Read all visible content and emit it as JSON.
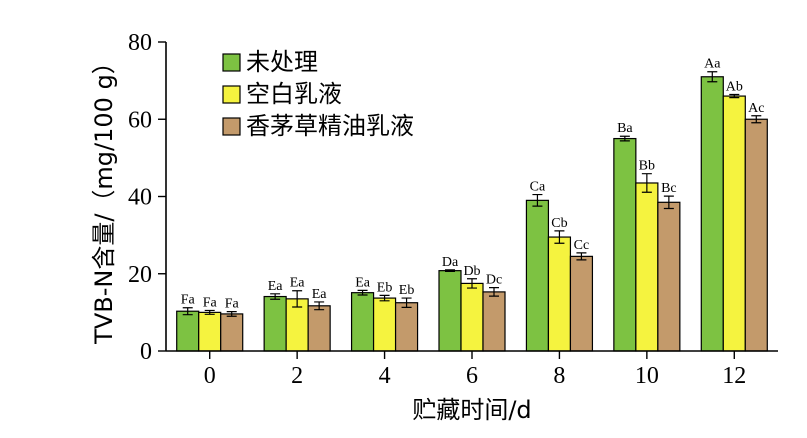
{
  "chart_data": {
    "type": "bar",
    "xlabel": "贮藏时间/d",
    "ylabel": "TVB-N含量/（mg/100 g）",
    "ylim": [
      0,
      80
    ],
    "yticks": [
      0,
      20,
      40,
      60,
      80
    ],
    "categories": [
      "0",
      "2",
      "4",
      "6",
      "8",
      "10",
      "12"
    ],
    "legend_position": "top-left",
    "series": [
      {
        "name": "未处理",
        "color": "#7dc242",
        "values": [
          10.3,
          14.1,
          15.1,
          20.8,
          39.0,
          55.0,
          71.0
        ],
        "errors": [
          0.9,
          0.7,
          0.6,
          0.2,
          1.5,
          0.6,
          1.3
        ],
        "labels": [
          "Fa",
          "Ea",
          "Ea",
          "Da",
          "Ca",
          "Ba",
          "Aa"
        ]
      },
      {
        "name": "空白乳液",
        "color": "#f5f33f",
        "values": [
          10.0,
          13.5,
          13.7,
          17.5,
          29.5,
          43.5,
          66.0
        ],
        "errors": [
          0.5,
          2.1,
          0.7,
          1.2,
          1.6,
          2.4,
          0.4
        ],
        "labels": [
          "Fa",
          "Ea",
          "Eb",
          "Db",
          "Cb",
          "Bb",
          "Ab"
        ]
      },
      {
        "name": "香茅草精油乳液",
        "color": "#c39a6b",
        "values": [
          9.6,
          11.7,
          12.5,
          15.3,
          24.5,
          38.5,
          60.0
        ],
        "errors": [
          0.6,
          1.0,
          1.2,
          1.1,
          0.9,
          1.6,
          0.9
        ],
        "labels": [
          "Fa",
          "Ea",
          "Eb",
          "Dc",
          "Cc",
          "Bc",
          "Ac"
        ]
      }
    ]
  }
}
